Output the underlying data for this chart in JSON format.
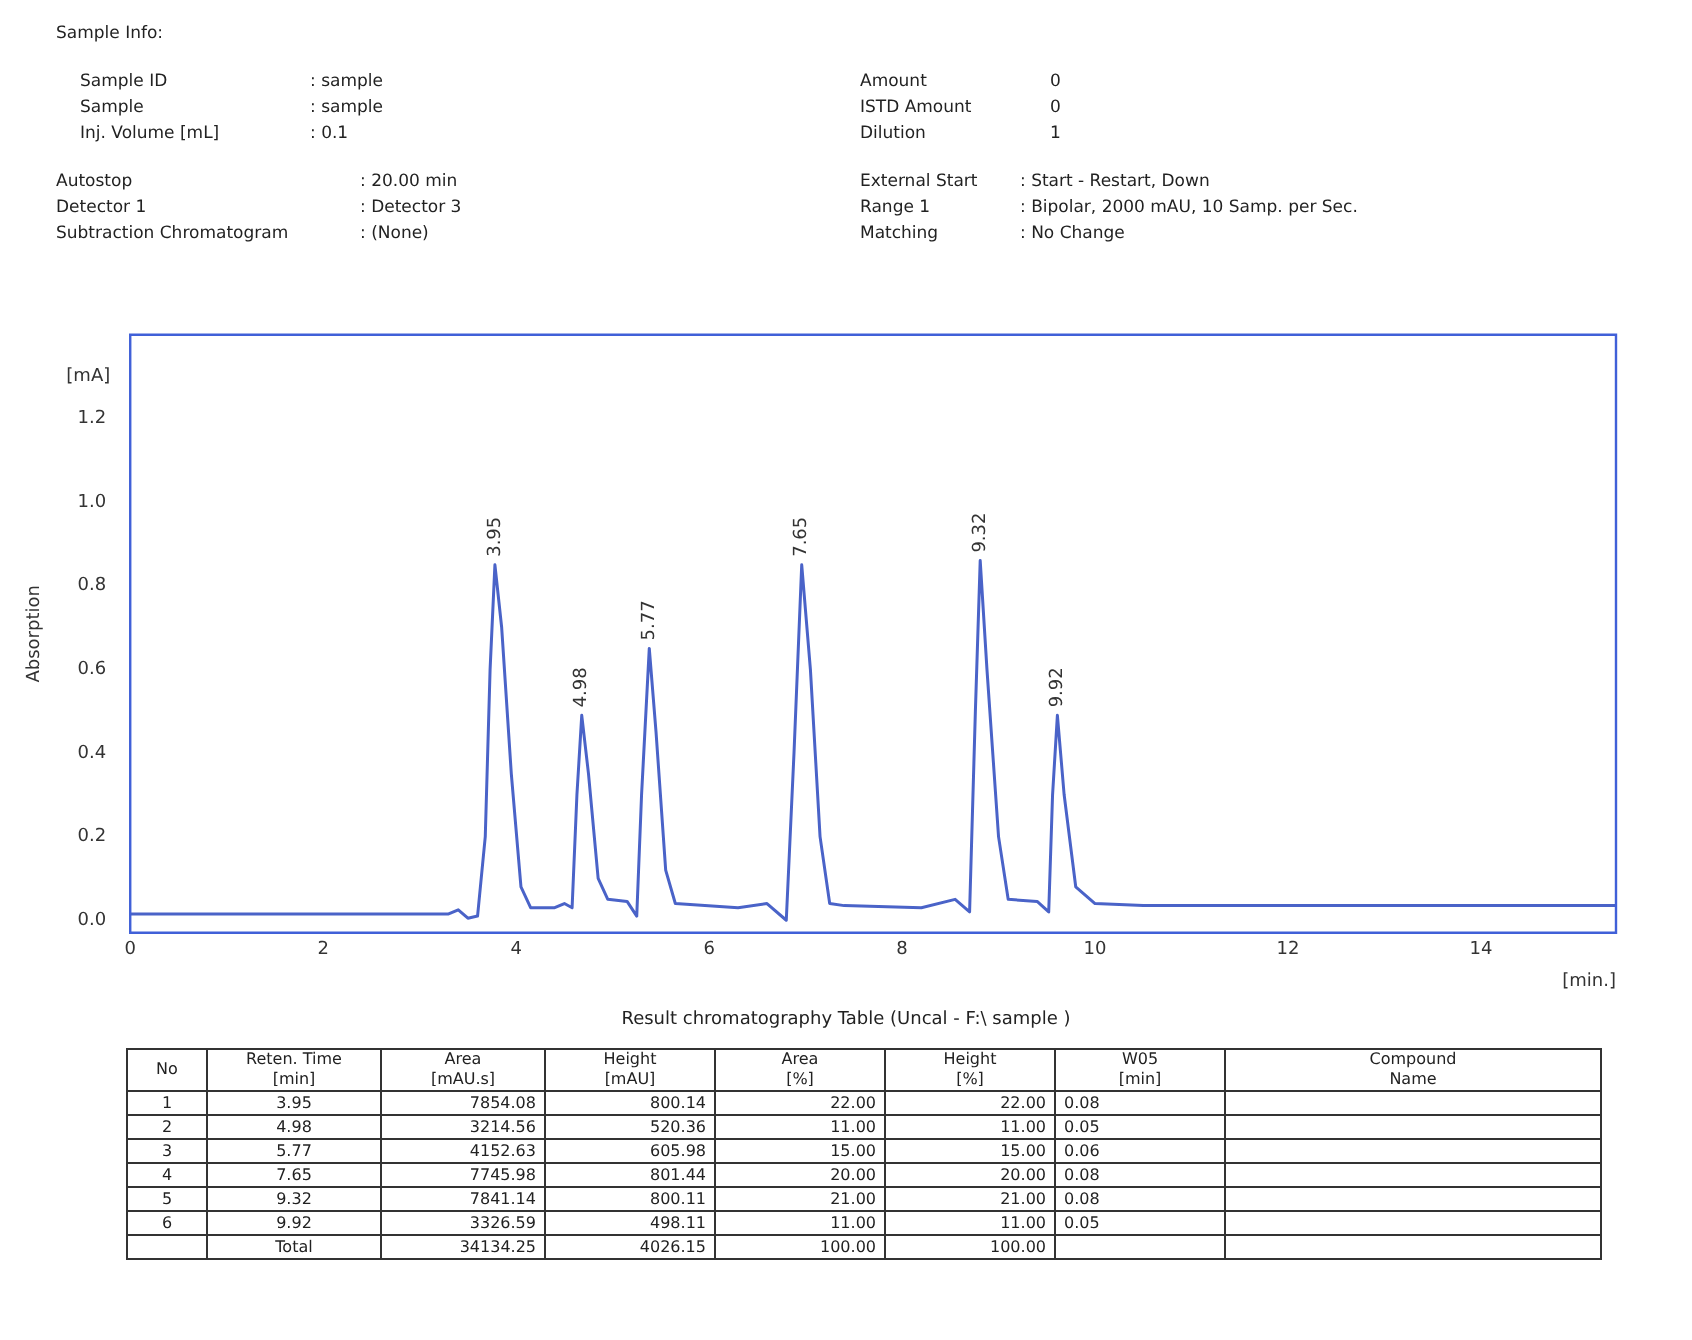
{
  "chart_data": {
    "type": "line",
    "xlabel": "[min.]",
    "ylabel": "Absorption",
    "x": [
      0,
      3.3,
      3.4,
      3.5,
      3.6,
      3.68,
      3.73,
      3.78,
      3.85,
      3.95,
      4.05,
      4.15,
      4.4,
      4.5,
      4.58,
      4.63,
      4.68,
      4.75,
      4.85,
      4.95,
      5.15,
      5.25,
      5.3,
      5.38,
      5.45,
      5.55,
      5.65,
      6.3,
      6.6,
      6.8,
      6.88,
      6.96,
      7.05,
      7.15,
      7.25,
      7.4,
      8.2,
      8.55,
      8.7,
      8.76,
      8.81,
      8.88,
      9.0,
      9.1,
      9.4,
      9.52,
      9.56,
      9.61,
      9.68,
      9.8,
      10.0,
      10.5,
      15.4
    ],
    "series": [
      {
        "color": "#4a63c8",
        "values": [
          0.015,
          0.015,
          0.025,
          0.005,
          0.01,
          0.2,
          0.6,
          0.85,
          0.7,
          0.35,
          0.08,
          0.03,
          0.03,
          0.04,
          0.03,
          0.3,
          0.49,
          0.35,
          0.1,
          0.05,
          0.045,
          0.01,
          0.3,
          0.65,
          0.45,
          0.12,
          0.04,
          0.03,
          0.04,
          0.0,
          0.4,
          0.85,
          0.6,
          0.2,
          0.04,
          0.035,
          0.03,
          0.05,
          0.02,
          0.5,
          0.86,
          0.6,
          0.2,
          0.05,
          0.045,
          0.02,
          0.3,
          0.49,
          0.3,
          0.08,
          0.04,
          0.035,
          0.035
        ]
      }
    ],
    "xlim": [
      0,
      15.4
    ],
    "xticks": [
      0,
      2,
      4,
      6,
      8,
      10,
      12,
      14
    ],
    "ylim": [
      -0.03,
      1.4
    ],
    "yticks": [
      {
        "value": 0,
        "label": "0.0"
      },
      {
        "value": 0.2,
        "label": "0.2"
      },
      {
        "value": 0.4,
        "label": "0.4"
      },
      {
        "value": 0.6,
        "label": "0.6"
      },
      {
        "value": 0.8,
        "label": "0.8"
      },
      {
        "value": 1.0,
        "label": "1.0"
      },
      {
        "value": 1.2,
        "label": "1.2"
      }
    ],
    "grid": false,
    "legend": false,
    "marker": "none",
    "line_style": "solid",
    "annotations": [
      "Sample Info:",
      "Sample ID",
      ": sample",
      "Sample",
      ": sample",
      "Inj. Volume [mL]",
      ": 0.1",
      "Amount",
      "0",
      "ISTD Amount",
      "0",
      "Dilution",
      "1",
      "Autostop",
      ": 20.00 min",
      "Detector 1",
      ": Detector 3",
      "Subtraction Chromatogram",
      ": (None)",
      "External Start",
      ": Start - Restart, Down",
      "Range 1",
      ": Bipolar, 2000 mAU, 10 Samp. per Sec.",
      "Matching",
      ": No Change",
      "[mA]",
      "Result chromatography Table (Uncal - F:\\ sample )",
      "No",
      "Reten. Time\n[min]",
      "Area\n[mAU.s]",
      "Height\n[mAU]",
      "Area\n[%]",
      "Height\n[%]",
      "W05\n[min]",
      "Compound\nName",
      "1",
      "3.95",
      "7854.08",
      "800.14",
      "22.00",
      "22.00",
      "0.08",
      "2",
      "4.98",
      "3214.56",
      "520.36",
      "11.00",
      "11.00",
      "0.05",
      "3",
      "5.77",
      "4152.63",
      "605.98",
      "15.00",
      "15.00",
      "0.06",
      "4",
      "7.65",
      "7745.98",
      "801.44",
      "20.00",
      "20.00",
      "0.08",
      "5",
      "9.32",
      "7841.14",
      "800.11",
      "21.00",
      "21.00",
      "0.08",
      "6",
      "9.92",
      "3326.59",
      "498.11",
      "11.00",
      "11.00",
      "0.05",
      "Total",
      "34134.25",
      "4026.15",
      "100.00",
      "100.00",
      {
        "text": "3.95",
        "x": 3.78,
        "y": 0.85
      },
      {
        "text": "4.98",
        "x": 4.68,
        "y": 0.49
      },
      {
        "text": "5.77",
        "x": 5.38,
        "y": 0.65
      },
      {
        "text": "7.65",
        "x": 6.96,
        "y": 0.85
      },
      {
        "text": "9.32",
        "x": 8.81,
        "y": 0.86
      },
      {
        "text": "9.92",
        "x": 9.61,
        "y": 0.49
      }
    ]
  }
}
